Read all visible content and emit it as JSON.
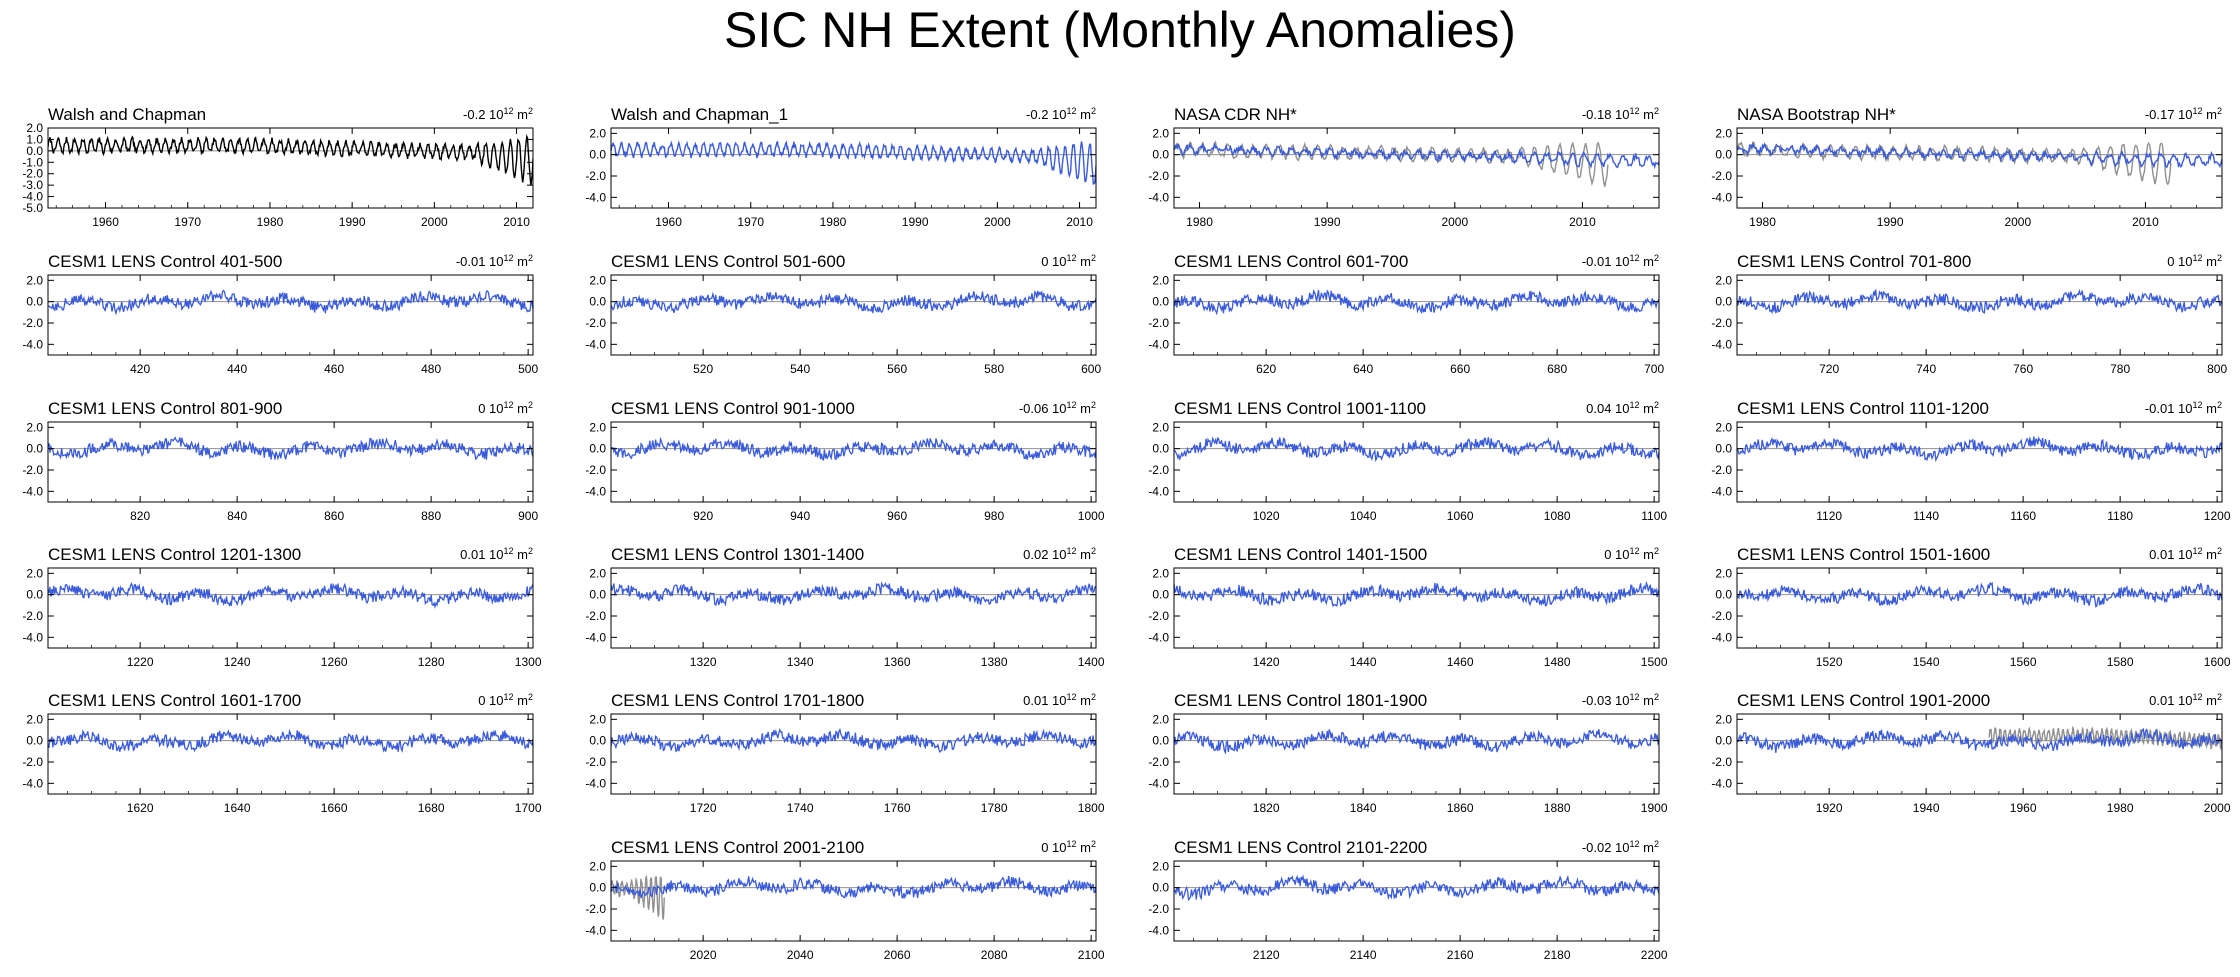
{
  "page_title": "SIC NH Extent (Monthly Anomalies)",
  "unit_label": "10",
  "unit_exp": "12",
  "unit_m": "m",
  "unit_m_exp": "2",
  "colors": {
    "model": "#3a5bd9",
    "obs": "#909090",
    "obs_black": "#000000",
    "zero": "#909090"
  },
  "chart_data": [
    {
      "type": "line",
      "title": "Walsh and Chapman",
      "value": "-0.2",
      "x_range": [
        1953,
        2012
      ],
      "ylim": [
        -5,
        2
      ],
      "x_ticks": [
        1960,
        1970,
        1980,
        1990,
        2000,
        2010
      ],
      "y_ticks": [
        "2.0",
        "1.0",
        "0.0",
        "-1.0",
        "-2.0",
        "-3.0",
        "-4.0",
        "-5.0"
      ],
      "y_tick_values": [
        2,
        1,
        0,
        -1,
        -2,
        -3,
        -4,
        -5
      ],
      "series": [
        {
          "name": "Walsh and Chapman",
          "color": "#000000",
          "pattern": "obs_wc",
          "start": 1953,
          "end": 2012
        }
      ]
    },
    {
      "type": "line",
      "title": "Walsh and Chapman_1",
      "value": "-0.2",
      "x_range": [
        1953,
        2012
      ],
      "ylim": [
        -5,
        2.5
      ],
      "x_ticks": [
        1960,
        1970,
        1980,
        1990,
        2000,
        2010
      ],
      "y_ticks": [
        "2.0",
        "0.0",
        "-2.0",
        "-4.0"
      ],
      "y_tick_values": [
        2,
        0,
        -2,
        -4
      ],
      "series": [
        {
          "name": "Walsh and Chapman_1",
          "color": "#3a5bd9",
          "pattern": "obs_wc",
          "start": 1953,
          "end": 2012
        }
      ]
    },
    {
      "type": "line",
      "title": "NASA CDR NH*",
      "value": "-0.18",
      "x_range": [
        1978,
        2016
      ],
      "ylim": [
        -5,
        2.5
      ],
      "x_ticks": [
        1980,
        1990,
        2000,
        2010
      ],
      "y_ticks": [
        "2.0",
        "0.0",
        "-2.0",
        "-4.0"
      ],
      "y_tick_values": [
        2,
        0,
        -2,
        -4
      ],
      "series": [
        {
          "name": "Walsh and Chapman",
          "color": "#909090",
          "pattern": "obs_wc",
          "start": 1978,
          "end": 2012
        },
        {
          "name": "NASA CDR NH*",
          "color": "#3a5bd9",
          "pattern": "obs_sat",
          "start": 1978,
          "end": 2016
        }
      ]
    },
    {
      "type": "line",
      "title": "NASA Bootstrap NH*",
      "value": "-0.17",
      "x_range": [
        1978,
        2016
      ],
      "ylim": [
        -5,
        2.5
      ],
      "x_ticks": [
        1980,
        1990,
        2000,
        2010
      ],
      "y_ticks": [
        "2.0",
        "0.0",
        "-2.0",
        "-4.0"
      ],
      "y_tick_values": [
        2,
        0,
        -2,
        -4
      ],
      "series": [
        {
          "name": "Walsh and Chapman",
          "color": "#909090",
          "pattern": "obs_wc",
          "start": 1978,
          "end": 2012
        },
        {
          "name": "NASA Bootstrap NH*",
          "color": "#3a5bd9",
          "pattern": "obs_sat",
          "start": 1978,
          "end": 2016
        }
      ]
    },
    {
      "type": "line",
      "title": "CESM1 LENS Control 401-500",
      "value": "-0.01",
      "x_range": [
        401,
        501
      ],
      "ylim": [
        -5,
        2.5
      ],
      "x_ticks": [
        420,
        440,
        460,
        480,
        500
      ],
      "y_ticks": [
        "2.0",
        "0.0",
        "-2.0",
        "-4.0"
      ],
      "y_tick_values": [
        2,
        0,
        -2,
        -4
      ],
      "series": [
        {
          "name": "model",
          "color": "#3a5bd9",
          "pattern": "model",
          "start": 401,
          "end": 501
        }
      ]
    },
    {
      "type": "line",
      "title": "CESM1 LENS Control 501-600",
      "value": "0",
      "x_range": [
        501,
        601
      ],
      "ylim": [
        -5,
        2.5
      ],
      "x_ticks": [
        520,
        540,
        560,
        580,
        600
      ],
      "y_ticks": [
        "2.0",
        "0.0",
        "-2.0",
        "-4.0"
      ],
      "y_tick_values": [
        2,
        0,
        -2,
        -4
      ],
      "series": [
        {
          "name": "model",
          "color": "#3a5bd9",
          "pattern": "model",
          "start": 501,
          "end": 601
        }
      ]
    },
    {
      "type": "line",
      "title": "CESM1 LENS Control 601-700",
      "value": "-0.01",
      "x_range": [
        601,
        701
      ],
      "ylim": [
        -5,
        2.5
      ],
      "x_ticks": [
        620,
        640,
        660,
        680,
        700
      ],
      "y_ticks": [
        "2.0",
        "0.0",
        "-2.0",
        "-4.0"
      ],
      "y_tick_values": [
        2,
        0,
        -2,
        -4
      ],
      "series": [
        {
          "name": "model",
          "color": "#3a5bd9",
          "pattern": "model",
          "start": 601,
          "end": 701
        }
      ]
    },
    {
      "type": "line",
      "title": "CESM1 LENS Control 701-800",
      "value": "0",
      "x_range": [
        701,
        801
      ],
      "ylim": [
        -5,
        2.5
      ],
      "x_ticks": [
        720,
        740,
        760,
        780,
        800
      ],
      "y_ticks": [
        "2.0",
        "0.0",
        "-2.0",
        "-4.0"
      ],
      "y_tick_values": [
        2,
        0,
        -2,
        -4
      ],
      "series": [
        {
          "name": "model",
          "color": "#3a5bd9",
          "pattern": "model",
          "start": 701,
          "end": 801
        }
      ]
    },
    {
      "type": "line",
      "title": "CESM1 LENS Control 801-900",
      "value": "0",
      "x_range": [
        801,
        901
      ],
      "ylim": [
        -5,
        2.5
      ],
      "x_ticks": [
        820,
        840,
        860,
        880,
        900
      ],
      "y_ticks": [
        "2.0",
        "0.0",
        "-2.0",
        "-4.0"
      ],
      "y_tick_values": [
        2,
        0,
        -2,
        -4
      ],
      "series": [
        {
          "name": "model",
          "color": "#3a5bd9",
          "pattern": "model",
          "start": 801,
          "end": 901
        }
      ]
    },
    {
      "type": "line",
      "title": "CESM1 LENS Control 901-1000",
      "value": "-0.06",
      "x_range": [
        901,
        1001
      ],
      "ylim": [
        -5,
        2.5
      ],
      "x_ticks": [
        920,
        940,
        960,
        980,
        1000
      ],
      "y_ticks": [
        "2.0",
        "0.0",
        "-2.0",
        "-4.0"
      ],
      "y_tick_values": [
        2,
        0,
        -2,
        -4
      ],
      "series": [
        {
          "name": "model",
          "color": "#3a5bd9",
          "pattern": "model",
          "start": 901,
          "end": 1001
        }
      ]
    },
    {
      "type": "line",
      "title": "CESM1 LENS Control 1001-1100",
      "value": "0.04",
      "x_range": [
        1001,
        1101
      ],
      "ylim": [
        -5,
        2.5
      ],
      "x_ticks": [
        1020,
        1040,
        1060,
        1080,
        1100
      ],
      "y_ticks": [
        "2.0",
        "0.0",
        "-2.0",
        "-4.0"
      ],
      "y_tick_values": [
        2,
        0,
        -2,
        -4
      ],
      "series": [
        {
          "name": "model",
          "color": "#3a5bd9",
          "pattern": "model",
          "start": 1001,
          "end": 1101
        }
      ]
    },
    {
      "type": "line",
      "title": "CESM1 LENS Control 1101-1200",
      "value": "-0.01",
      "x_range": [
        1101,
        1201
      ],
      "ylim": [
        -5,
        2.5
      ],
      "x_ticks": [
        1120,
        1140,
        1160,
        1180,
        1200
      ],
      "y_ticks": [
        "2.0",
        "0.0",
        "-2.0",
        "-4.0"
      ],
      "y_tick_values": [
        2,
        0,
        -2,
        -4
      ],
      "series": [
        {
          "name": "model",
          "color": "#3a5bd9",
          "pattern": "model",
          "start": 1101,
          "end": 1201
        }
      ]
    },
    {
      "type": "line",
      "title": "CESM1 LENS Control 1201-1300",
      "value": "0.01",
      "x_range": [
        1201,
        1301
      ],
      "ylim": [
        -5,
        2.5
      ],
      "x_ticks": [
        1220,
        1240,
        1260,
        1280,
        1300
      ],
      "y_ticks": [
        "2.0",
        "0.0",
        "-2.0",
        "-4.0"
      ],
      "y_tick_values": [
        2,
        0,
        -2,
        -4
      ],
      "series": [
        {
          "name": "model",
          "color": "#3a5bd9",
          "pattern": "model",
          "start": 1201,
          "end": 1301
        }
      ]
    },
    {
      "type": "line",
      "title": "CESM1 LENS Control 1301-1400",
      "value": "0.02",
      "x_range": [
        1301,
        1401
      ],
      "ylim": [
        -5,
        2.5
      ],
      "x_ticks": [
        1320,
        1340,
        1360,
        1380,
        1400
      ],
      "y_ticks": [
        "2.0",
        "0.0",
        "-2.0",
        "-4.0"
      ],
      "y_tick_values": [
        2,
        0,
        -2,
        -4
      ],
      "series": [
        {
          "name": "model",
          "color": "#3a5bd9",
          "pattern": "model",
          "start": 1301,
          "end": 1401
        }
      ]
    },
    {
      "type": "line",
      "title": "CESM1 LENS Control 1401-1500",
      "value": "0",
      "x_range": [
        1401,
        1501
      ],
      "ylim": [
        -5,
        2.5
      ],
      "x_ticks": [
        1420,
        1440,
        1460,
        1480,
        1500
      ],
      "y_ticks": [
        "2.0",
        "0.0",
        "-2.0",
        "-4.0"
      ],
      "y_tick_values": [
        2,
        0,
        -2,
        -4
      ],
      "series": [
        {
          "name": "model",
          "color": "#3a5bd9",
          "pattern": "model",
          "start": 1401,
          "end": 1501
        }
      ]
    },
    {
      "type": "line",
      "title": "CESM1 LENS Control 1501-1600",
      "value": "0.01",
      "x_range": [
        1501,
        1601
      ],
      "ylim": [
        -5,
        2.5
      ],
      "x_ticks": [
        1520,
        1540,
        1560,
        1580,
        1600
      ],
      "y_ticks": [
        "2.0",
        "0.0",
        "-2.0",
        "-4.0"
      ],
      "y_tick_values": [
        2,
        0,
        -2,
        -4
      ],
      "series": [
        {
          "name": "model",
          "color": "#3a5bd9",
          "pattern": "model",
          "start": 1501,
          "end": 1601
        }
      ]
    },
    {
      "type": "line",
      "title": "CESM1 LENS Control 1601-1700",
      "value": "0",
      "x_range": [
        1601,
        1701
      ],
      "ylim": [
        -5,
        2.5
      ],
      "x_ticks": [
        1620,
        1640,
        1660,
        1680,
        1700
      ],
      "y_ticks": [
        "2.0",
        "0.0",
        "-2.0",
        "-4.0"
      ],
      "y_tick_values": [
        2,
        0,
        -2,
        -4
      ],
      "series": [
        {
          "name": "model",
          "color": "#3a5bd9",
          "pattern": "model",
          "start": 1601,
          "end": 1701
        }
      ]
    },
    {
      "type": "line",
      "title": "CESM1 LENS Control 1701-1800",
      "value": "0.01",
      "x_range": [
        1701,
        1801
      ],
      "ylim": [
        -5,
        2.5
      ],
      "x_ticks": [
        1720,
        1740,
        1760,
        1780,
        1800
      ],
      "y_ticks": [
        "2.0",
        "0.0",
        "-2.0",
        "-4.0"
      ],
      "y_tick_values": [
        2,
        0,
        -2,
        -4
      ],
      "series": [
        {
          "name": "model",
          "color": "#3a5bd9",
          "pattern": "model",
          "start": 1701,
          "end": 1801
        }
      ]
    },
    {
      "type": "line",
      "title": "CESM1 LENS Control 1801-1900",
      "value": "-0.03",
      "x_range": [
        1801,
        1901
      ],
      "ylim": [
        -5,
        2.5
      ],
      "x_ticks": [
        1820,
        1840,
        1860,
        1880,
        1900
      ],
      "y_ticks": [
        "2.0",
        "0.0",
        "-2.0",
        "-4.0"
      ],
      "y_tick_values": [
        2,
        0,
        -2,
        -4
      ],
      "series": [
        {
          "name": "model",
          "color": "#3a5bd9",
          "pattern": "model",
          "start": 1801,
          "end": 1901
        }
      ]
    },
    {
      "type": "line",
      "title": "CESM1 LENS Control 1901-2000",
      "value": "0.01",
      "x_range": [
        1901,
        2001
      ],
      "ylim": [
        -5,
        2.5
      ],
      "x_ticks": [
        1920,
        1940,
        1960,
        1980,
        2000
      ],
      "y_ticks": [
        "2.0",
        "0.0",
        "-2.0",
        "-4.0"
      ],
      "y_tick_values": [
        2,
        0,
        -2,
        -4
      ],
      "series": [
        {
          "name": "Walsh and Chapman",
          "color": "#909090",
          "pattern": "obs_wc",
          "start": 1953,
          "end": 2001
        },
        {
          "name": "model",
          "color": "#3a5bd9",
          "pattern": "model",
          "start": 1901,
          "end": 2001
        }
      ]
    },
    {
      "type": "line",
      "title": "CESM1 LENS Control 2001-2100",
      "value": "0",
      "x_range": [
        2001,
        2101
      ],
      "ylim": [
        -5,
        2.5
      ],
      "x_ticks": [
        2020,
        2040,
        2060,
        2080,
        2100
      ],
      "y_ticks": [
        "2.0",
        "0.0",
        "-2.0",
        "-4.0"
      ],
      "y_tick_values": [
        2,
        0,
        -2,
        -4
      ],
      "series": [
        {
          "name": "Walsh and Chapman",
          "color": "#909090",
          "pattern": "obs_wc",
          "start": 2001,
          "end": 2012
        },
        {
          "name": "model",
          "color": "#3a5bd9",
          "pattern": "model",
          "start": 2001,
          "end": 2101
        }
      ]
    },
    {
      "type": "line",
      "title": "CESM1 LENS Control 2101-2200",
      "value": "-0.02",
      "x_range": [
        2101,
        2201
      ],
      "ylim": [
        -5,
        2.5
      ],
      "x_ticks": [
        2120,
        2140,
        2160,
        2180,
        2200
      ],
      "y_ticks": [
        "2.0",
        "0.0",
        "-2.0",
        "-4.0"
      ],
      "y_tick_values": [
        2,
        0,
        -2,
        -4
      ],
      "series": [
        {
          "name": "model",
          "color": "#3a5bd9",
          "pattern": "model",
          "start": 2101,
          "end": 2201
        }
      ]
    }
  ]
}
